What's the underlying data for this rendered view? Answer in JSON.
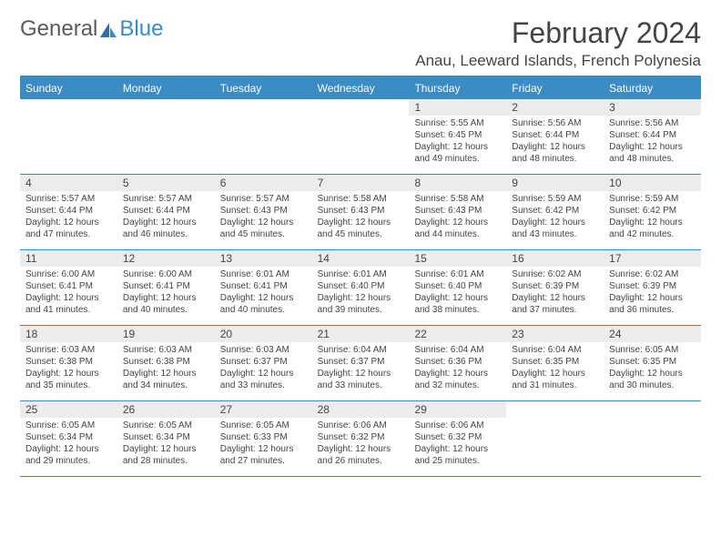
{
  "brand": {
    "part1": "General",
    "part2": "Blue"
  },
  "title": "February 2024",
  "location": "Anau, Leeward Islands, French Polynesia",
  "colors": {
    "accent": "#3b8bc4",
    "daynum_bg": "#ececec",
    "text": "#444444",
    "bg": "#ffffff"
  },
  "weekdays": [
    "Sunday",
    "Monday",
    "Tuesday",
    "Wednesday",
    "Thursday",
    "Friday",
    "Saturday"
  ],
  "weeks": [
    [
      {
        "n": "",
        "rise": "",
        "set": "",
        "d1": "",
        "d2": ""
      },
      {
        "n": "",
        "rise": "",
        "set": "",
        "d1": "",
        "d2": ""
      },
      {
        "n": "",
        "rise": "",
        "set": "",
        "d1": "",
        "d2": ""
      },
      {
        "n": "",
        "rise": "",
        "set": "",
        "d1": "",
        "d2": ""
      },
      {
        "n": "1",
        "rise": "Sunrise: 5:55 AM",
        "set": "Sunset: 6:45 PM",
        "d1": "Daylight: 12 hours",
        "d2": "and 49 minutes."
      },
      {
        "n": "2",
        "rise": "Sunrise: 5:56 AM",
        "set": "Sunset: 6:44 PM",
        "d1": "Daylight: 12 hours",
        "d2": "and 48 minutes."
      },
      {
        "n": "3",
        "rise": "Sunrise: 5:56 AM",
        "set": "Sunset: 6:44 PM",
        "d1": "Daylight: 12 hours",
        "d2": "and 48 minutes."
      }
    ],
    [
      {
        "n": "4",
        "rise": "Sunrise: 5:57 AM",
        "set": "Sunset: 6:44 PM",
        "d1": "Daylight: 12 hours",
        "d2": "and 47 minutes."
      },
      {
        "n": "5",
        "rise": "Sunrise: 5:57 AM",
        "set": "Sunset: 6:44 PM",
        "d1": "Daylight: 12 hours",
        "d2": "and 46 minutes."
      },
      {
        "n": "6",
        "rise": "Sunrise: 5:57 AM",
        "set": "Sunset: 6:43 PM",
        "d1": "Daylight: 12 hours",
        "d2": "and 45 minutes."
      },
      {
        "n": "7",
        "rise": "Sunrise: 5:58 AM",
        "set": "Sunset: 6:43 PM",
        "d1": "Daylight: 12 hours",
        "d2": "and 45 minutes."
      },
      {
        "n": "8",
        "rise": "Sunrise: 5:58 AM",
        "set": "Sunset: 6:43 PM",
        "d1": "Daylight: 12 hours",
        "d2": "and 44 minutes."
      },
      {
        "n": "9",
        "rise": "Sunrise: 5:59 AM",
        "set": "Sunset: 6:42 PM",
        "d1": "Daylight: 12 hours",
        "d2": "and 43 minutes."
      },
      {
        "n": "10",
        "rise": "Sunrise: 5:59 AM",
        "set": "Sunset: 6:42 PM",
        "d1": "Daylight: 12 hours",
        "d2": "and 42 minutes."
      }
    ],
    [
      {
        "n": "11",
        "rise": "Sunrise: 6:00 AM",
        "set": "Sunset: 6:41 PM",
        "d1": "Daylight: 12 hours",
        "d2": "and 41 minutes."
      },
      {
        "n": "12",
        "rise": "Sunrise: 6:00 AM",
        "set": "Sunset: 6:41 PM",
        "d1": "Daylight: 12 hours",
        "d2": "and 40 minutes."
      },
      {
        "n": "13",
        "rise": "Sunrise: 6:01 AM",
        "set": "Sunset: 6:41 PM",
        "d1": "Daylight: 12 hours",
        "d2": "and 40 minutes."
      },
      {
        "n": "14",
        "rise": "Sunrise: 6:01 AM",
        "set": "Sunset: 6:40 PM",
        "d1": "Daylight: 12 hours",
        "d2": "and 39 minutes."
      },
      {
        "n": "15",
        "rise": "Sunrise: 6:01 AM",
        "set": "Sunset: 6:40 PM",
        "d1": "Daylight: 12 hours",
        "d2": "and 38 minutes."
      },
      {
        "n": "16",
        "rise": "Sunrise: 6:02 AM",
        "set": "Sunset: 6:39 PM",
        "d1": "Daylight: 12 hours",
        "d2": "and 37 minutes."
      },
      {
        "n": "17",
        "rise": "Sunrise: 6:02 AM",
        "set": "Sunset: 6:39 PM",
        "d1": "Daylight: 12 hours",
        "d2": "and 36 minutes."
      }
    ],
    [
      {
        "n": "18",
        "rise": "Sunrise: 6:03 AM",
        "set": "Sunset: 6:38 PM",
        "d1": "Daylight: 12 hours",
        "d2": "and 35 minutes."
      },
      {
        "n": "19",
        "rise": "Sunrise: 6:03 AM",
        "set": "Sunset: 6:38 PM",
        "d1": "Daylight: 12 hours",
        "d2": "and 34 minutes."
      },
      {
        "n": "20",
        "rise": "Sunrise: 6:03 AM",
        "set": "Sunset: 6:37 PM",
        "d1": "Daylight: 12 hours",
        "d2": "and 33 minutes."
      },
      {
        "n": "21",
        "rise": "Sunrise: 6:04 AM",
        "set": "Sunset: 6:37 PM",
        "d1": "Daylight: 12 hours",
        "d2": "and 33 minutes."
      },
      {
        "n": "22",
        "rise": "Sunrise: 6:04 AM",
        "set": "Sunset: 6:36 PM",
        "d1": "Daylight: 12 hours",
        "d2": "and 32 minutes."
      },
      {
        "n": "23",
        "rise": "Sunrise: 6:04 AM",
        "set": "Sunset: 6:35 PM",
        "d1": "Daylight: 12 hours",
        "d2": "and 31 minutes."
      },
      {
        "n": "24",
        "rise": "Sunrise: 6:05 AM",
        "set": "Sunset: 6:35 PM",
        "d1": "Daylight: 12 hours",
        "d2": "and 30 minutes."
      }
    ],
    [
      {
        "n": "25",
        "rise": "Sunrise: 6:05 AM",
        "set": "Sunset: 6:34 PM",
        "d1": "Daylight: 12 hours",
        "d2": "and 29 minutes."
      },
      {
        "n": "26",
        "rise": "Sunrise: 6:05 AM",
        "set": "Sunset: 6:34 PM",
        "d1": "Daylight: 12 hours",
        "d2": "and 28 minutes."
      },
      {
        "n": "27",
        "rise": "Sunrise: 6:05 AM",
        "set": "Sunset: 6:33 PM",
        "d1": "Daylight: 12 hours",
        "d2": "and 27 minutes."
      },
      {
        "n": "28",
        "rise": "Sunrise: 6:06 AM",
        "set": "Sunset: 6:32 PM",
        "d1": "Daylight: 12 hours",
        "d2": "and 26 minutes."
      },
      {
        "n": "29",
        "rise": "Sunrise: 6:06 AM",
        "set": "Sunset: 6:32 PM",
        "d1": "Daylight: 12 hours",
        "d2": "and 25 minutes."
      },
      {
        "n": "",
        "rise": "",
        "set": "",
        "d1": "",
        "d2": ""
      },
      {
        "n": "",
        "rise": "",
        "set": "",
        "d1": "",
        "d2": ""
      }
    ]
  ]
}
